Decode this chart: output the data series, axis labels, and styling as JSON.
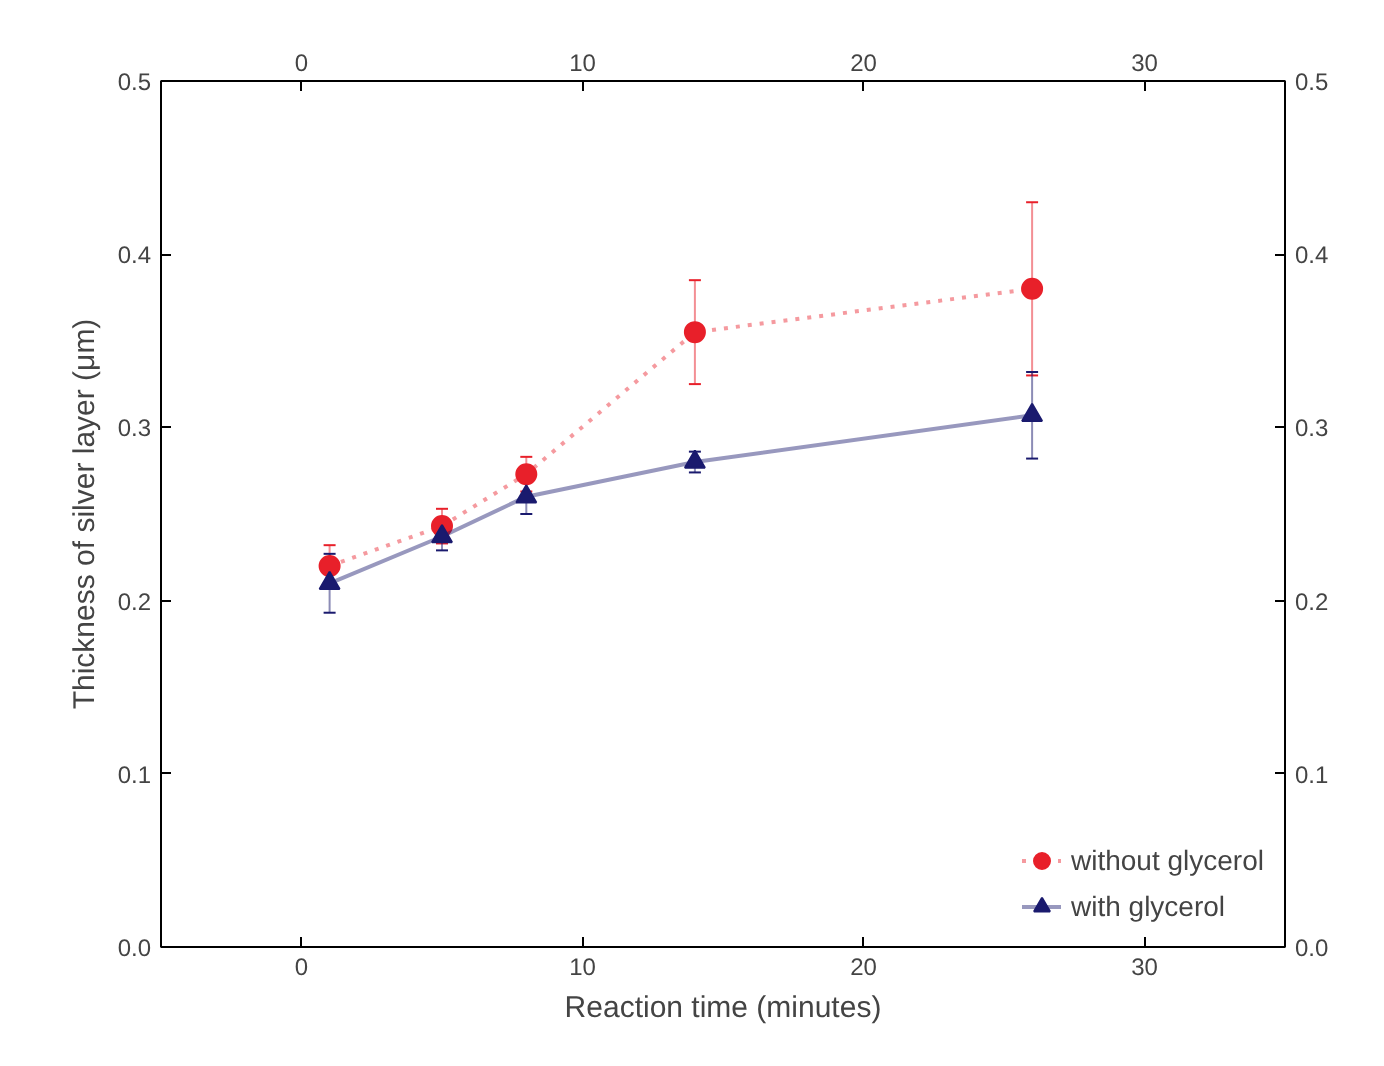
{
  "chart_data": {
    "type": "line",
    "xlabel": "Reaction time (minutes)",
    "ylabel": "Thickness of silver layer (μm)",
    "x": [
      1,
      5,
      8,
      14,
      26
    ],
    "series": [
      {
        "name": "without glycerol",
        "color": "#e8202a",
        "marker": "circle",
        "line_style": "dotted",
        "values": [
          0.22,
          0.243,
          0.273,
          0.355,
          0.38
        ],
        "errors": [
          0.012,
          0.01,
          0.01,
          0.03,
          0.05
        ]
      },
      {
        "name": "with glycerol",
        "color": "#1a1a6e",
        "marker": "triangle",
        "line_style": "solid",
        "values": [
          0.21,
          0.237,
          0.26,
          0.28,
          0.307
        ],
        "errors": [
          0.017,
          0.008,
          0.01,
          0.006,
          0.025
        ]
      }
    ],
    "xlim": [
      -5,
      35
    ],
    "xticks": [
      0,
      10,
      20,
      30
    ],
    "x2lim": [
      -5,
      35
    ],
    "x2ticks": [
      0,
      10,
      20,
      30
    ],
    "ylim": [
      0.0,
      0.5
    ],
    "yticks": [
      {
        "value": 0,
        "label": "0.0"
      },
      0.1,
      0.2,
      0.3,
      0.4,
      0.5
    ],
    "y2lim": [
      0.0,
      0.5
    ],
    "y2ticks": [
      {
        "value": 0,
        "label": "0.0"
      },
      0.1,
      0.2,
      0.3,
      0.4,
      0.5
    ],
    "grid": false,
    "legend": "bottom right"
  }
}
